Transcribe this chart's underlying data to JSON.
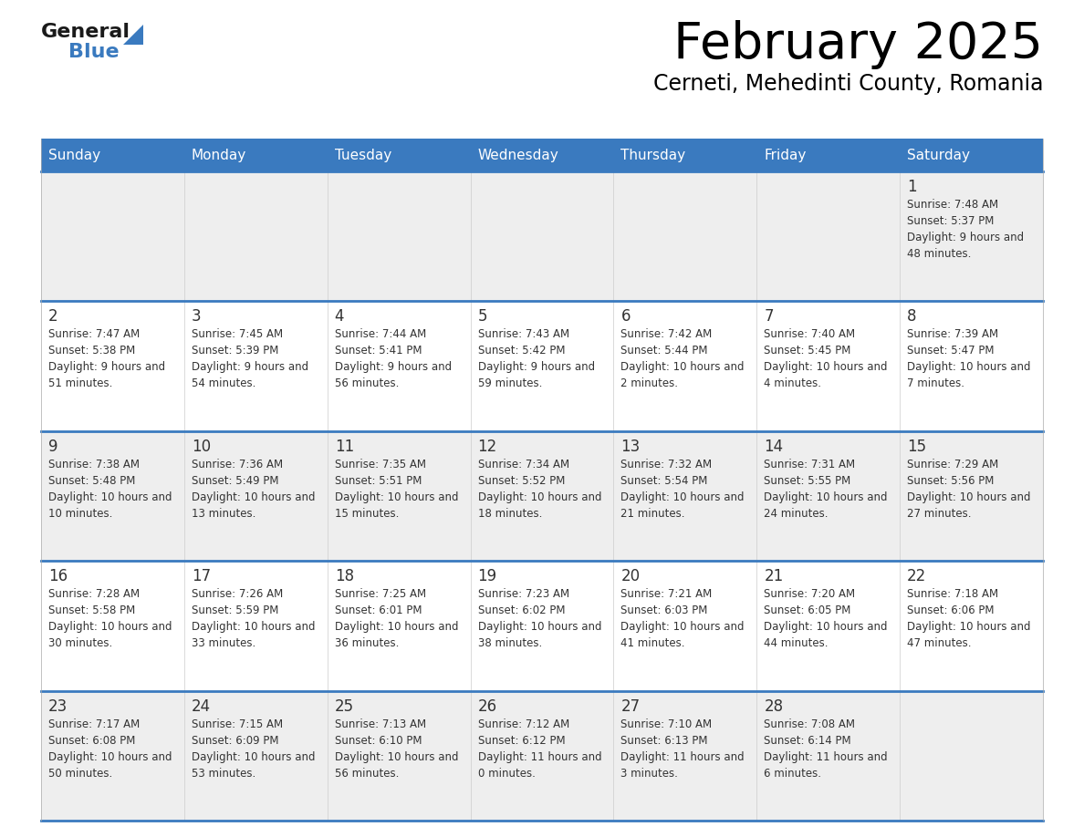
{
  "title": "February 2025",
  "subtitle": "Cerneti, Mehedinti County, Romania",
  "days_of_week": [
    "Sunday",
    "Monday",
    "Tuesday",
    "Wednesday",
    "Thursday",
    "Friday",
    "Saturday"
  ],
  "header_bg": "#3a7abf",
  "header_text": "#ffffff",
  "cell_bg_odd": "#eeeeee",
  "cell_bg_even": "#ffffff",
  "separator_color": "#3a7abf",
  "text_color": "#333333",
  "calendar_data": [
    [
      null,
      null,
      null,
      null,
      null,
      null,
      {
        "day": 1,
        "sunrise": "7:48 AM",
        "sunset": "5:37 PM",
        "daylight": "9 hours and 48 minutes."
      }
    ],
    [
      {
        "day": 2,
        "sunrise": "7:47 AM",
        "sunset": "5:38 PM",
        "daylight": "9 hours and 51 minutes."
      },
      {
        "day": 3,
        "sunrise": "7:45 AM",
        "sunset": "5:39 PM",
        "daylight": "9 hours and 54 minutes."
      },
      {
        "day": 4,
        "sunrise": "7:44 AM",
        "sunset": "5:41 PM",
        "daylight": "9 hours and 56 minutes."
      },
      {
        "day": 5,
        "sunrise": "7:43 AM",
        "sunset": "5:42 PM",
        "daylight": "9 hours and 59 minutes."
      },
      {
        "day": 6,
        "sunrise": "7:42 AM",
        "sunset": "5:44 PM",
        "daylight": "10 hours and 2 minutes."
      },
      {
        "day": 7,
        "sunrise": "7:40 AM",
        "sunset": "5:45 PM",
        "daylight": "10 hours and 4 minutes."
      },
      {
        "day": 8,
        "sunrise": "7:39 AM",
        "sunset": "5:47 PM",
        "daylight": "10 hours and 7 minutes."
      }
    ],
    [
      {
        "day": 9,
        "sunrise": "7:38 AM",
        "sunset": "5:48 PM",
        "daylight": "10 hours and 10 minutes."
      },
      {
        "day": 10,
        "sunrise": "7:36 AM",
        "sunset": "5:49 PM",
        "daylight": "10 hours and 13 minutes."
      },
      {
        "day": 11,
        "sunrise": "7:35 AM",
        "sunset": "5:51 PM",
        "daylight": "10 hours and 15 minutes."
      },
      {
        "day": 12,
        "sunrise": "7:34 AM",
        "sunset": "5:52 PM",
        "daylight": "10 hours and 18 minutes."
      },
      {
        "day": 13,
        "sunrise": "7:32 AM",
        "sunset": "5:54 PM",
        "daylight": "10 hours and 21 minutes."
      },
      {
        "day": 14,
        "sunrise": "7:31 AM",
        "sunset": "5:55 PM",
        "daylight": "10 hours and 24 minutes."
      },
      {
        "day": 15,
        "sunrise": "7:29 AM",
        "sunset": "5:56 PM",
        "daylight": "10 hours and 27 minutes."
      }
    ],
    [
      {
        "day": 16,
        "sunrise": "7:28 AM",
        "sunset": "5:58 PM",
        "daylight": "10 hours and 30 minutes."
      },
      {
        "day": 17,
        "sunrise": "7:26 AM",
        "sunset": "5:59 PM",
        "daylight": "10 hours and 33 minutes."
      },
      {
        "day": 18,
        "sunrise": "7:25 AM",
        "sunset": "6:01 PM",
        "daylight": "10 hours and 36 minutes."
      },
      {
        "day": 19,
        "sunrise": "7:23 AM",
        "sunset": "6:02 PM",
        "daylight": "10 hours and 38 minutes."
      },
      {
        "day": 20,
        "sunrise": "7:21 AM",
        "sunset": "6:03 PM",
        "daylight": "10 hours and 41 minutes."
      },
      {
        "day": 21,
        "sunrise": "7:20 AM",
        "sunset": "6:05 PM",
        "daylight": "10 hours and 44 minutes."
      },
      {
        "day": 22,
        "sunrise": "7:18 AM",
        "sunset": "6:06 PM",
        "daylight": "10 hours and 47 minutes."
      }
    ],
    [
      {
        "day": 23,
        "sunrise": "7:17 AM",
        "sunset": "6:08 PM",
        "daylight": "10 hours and 50 minutes."
      },
      {
        "day": 24,
        "sunrise": "7:15 AM",
        "sunset": "6:09 PM",
        "daylight": "10 hours and 53 minutes."
      },
      {
        "day": 25,
        "sunrise": "7:13 AM",
        "sunset": "6:10 PM",
        "daylight": "10 hours and 56 minutes."
      },
      {
        "day": 26,
        "sunrise": "7:12 AM",
        "sunset": "6:12 PM",
        "daylight": "11 hours and 0 minutes."
      },
      {
        "day": 27,
        "sunrise": "7:10 AM",
        "sunset": "6:13 PM",
        "daylight": "11 hours and 3 minutes."
      },
      {
        "day": 28,
        "sunrise": "7:08 AM",
        "sunset": "6:14 PM",
        "daylight": "11 hours and 6 minutes."
      },
      null
    ]
  ]
}
